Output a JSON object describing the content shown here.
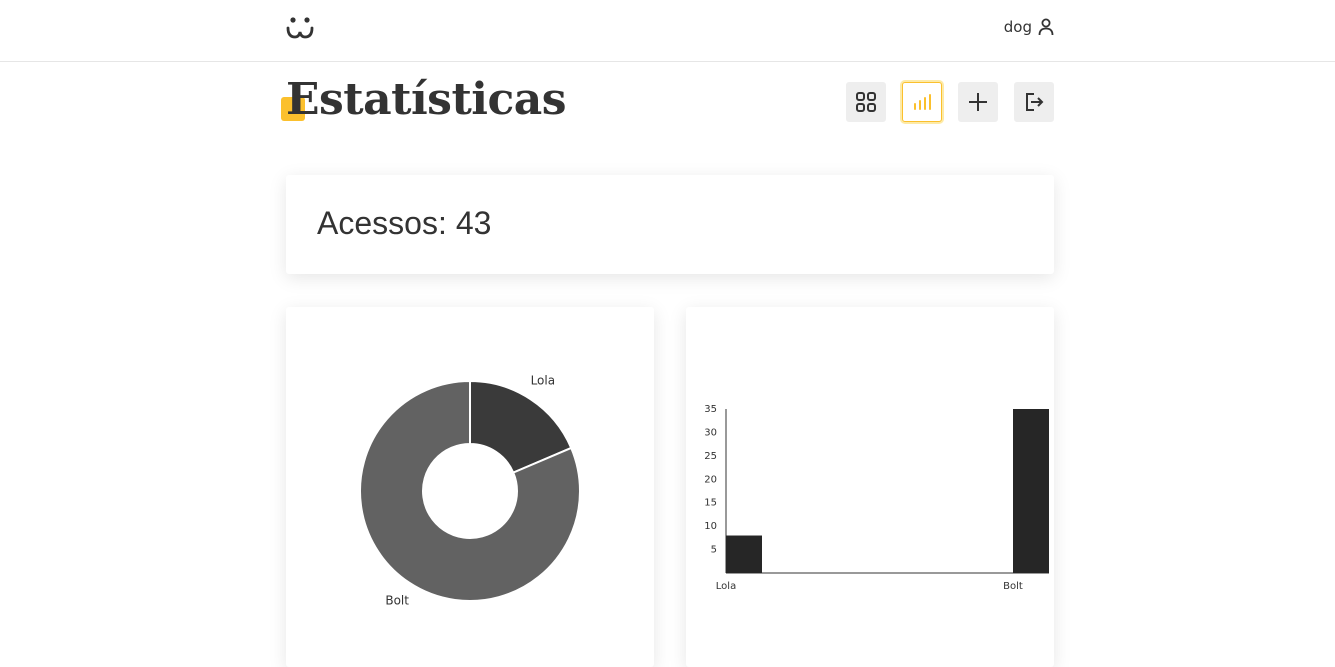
{
  "header": {
    "logo_icon": "dog-face-icon",
    "username": "dog",
    "user_icon": "user-icon"
  },
  "page": {
    "title": "Estatísticas",
    "accent_color": "#fbc02d"
  },
  "nav": {
    "buttons": [
      {
        "icon": "grid-icon",
        "active": false
      },
      {
        "icon": "bar-chart-icon",
        "active": true
      },
      {
        "icon": "plus-icon",
        "active": false
      },
      {
        "icon": "logout-icon",
        "active": false
      }
    ]
  },
  "access": {
    "label": "Acessos:",
    "value": "43"
  },
  "chart_data": [
    {
      "type": "pie",
      "variant": "donut",
      "categories": [
        "Lola",
        "Bolt"
      ],
      "values": [
        8,
        35
      ],
      "colors": [
        "#3a3a3a",
        "#626262"
      ],
      "title": ""
    },
    {
      "type": "bar",
      "categories": [
        "Lola",
        "Bolt"
      ],
      "values": [
        8,
        35
      ],
      "yticks": [
        5,
        10,
        15,
        20,
        25,
        30,
        35
      ],
      "ylim": [
        0,
        35
      ],
      "bar_color": "#262626",
      "title": "",
      "xlabel": "",
      "ylabel": ""
    }
  ]
}
